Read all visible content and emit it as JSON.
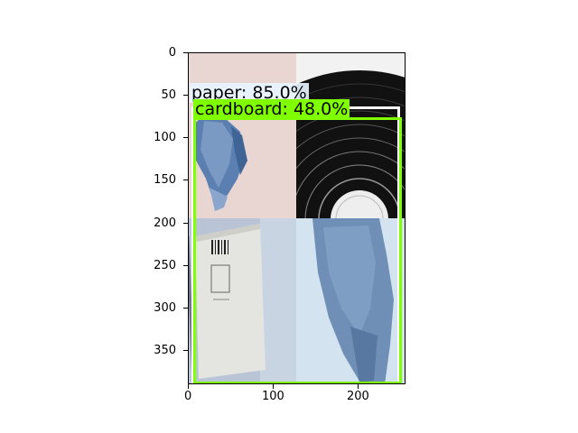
{
  "detections": [
    {
      "label": "paper: 85.0%",
      "color": "#ffffff",
      "label_bg": "#e6f4ff"
    },
    {
      "label": "cardboard: 48.0%",
      "color": "#7fff00",
      "label_bg": "#7fff00"
    }
  ],
  "axes": {
    "x_ticks": [
      "0",
      "100",
      "200"
    ],
    "y_ticks": [
      "0",
      "50",
      "100",
      "150",
      "200",
      "250",
      "300",
      "350"
    ],
    "xlim": [
      0,
      256
    ],
    "ylim": [
      390,
      0
    ]
  },
  "tiles": [
    {
      "content": "crumpled blue paper on pink background"
    },
    {
      "content": "black vinyl disc on white background"
    },
    {
      "content": "white cardboard box with barcode"
    },
    {
      "content": "crumpled blue paper close-up"
    }
  ]
}
